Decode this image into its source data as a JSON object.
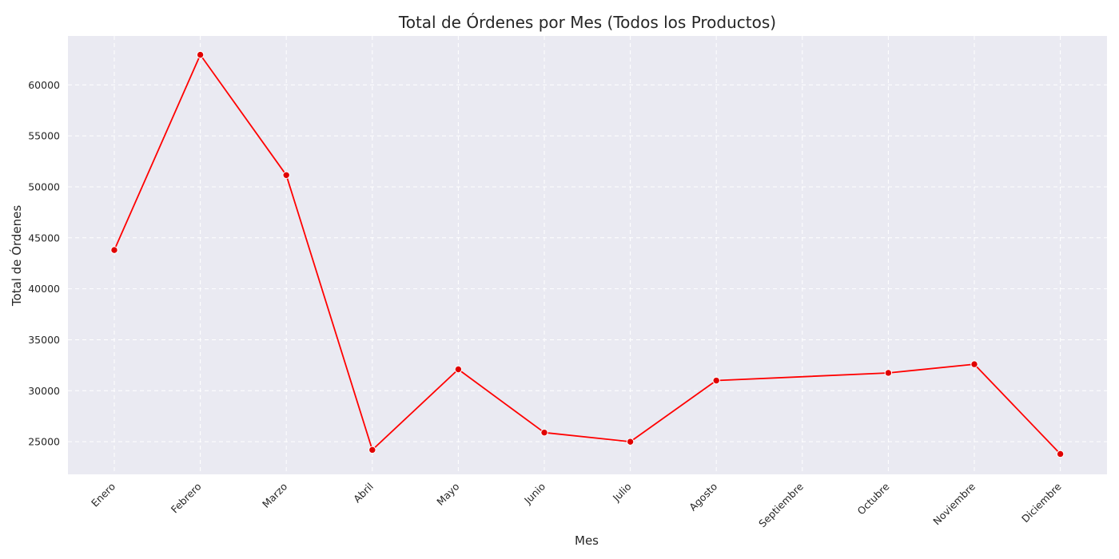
{
  "chart_data": {
    "type": "line",
    "title": "Total de Órdenes por Mes (Todos los Productos)",
    "xlabel": "Mes",
    "ylabel": "Total de Órdenes",
    "categories": [
      "Enero",
      "Febrero",
      "Marzo",
      "Abril",
      "Mayo",
      "Junio",
      "Julio",
      "Agosto",
      "Septiembre",
      "Octubre",
      "Noviembre",
      "Diciembre"
    ],
    "x_plotted": [
      "Enero",
      "Febrero",
      "Marzo",
      "Abril",
      "Mayo",
      "Junio",
      "Julio",
      "Agosto",
      "Octubre",
      "Noviembre",
      "Diciembre"
    ],
    "y_values": [
      43800,
      62950,
      51150,
      24200,
      32100,
      25900,
      25000,
      31000,
      31750,
      32600,
      23800
    ],
    "yticks": [
      25000,
      30000,
      35000,
      40000,
      45000,
      50000,
      55000,
      60000
    ],
    "ylim": [
      21800,
      64800
    ],
    "line_color": "#ff0000",
    "marker_color": "#e00000",
    "background_color": "#eaeaf2",
    "grid": true,
    "grid_style": "dashed",
    "legend": false
  }
}
